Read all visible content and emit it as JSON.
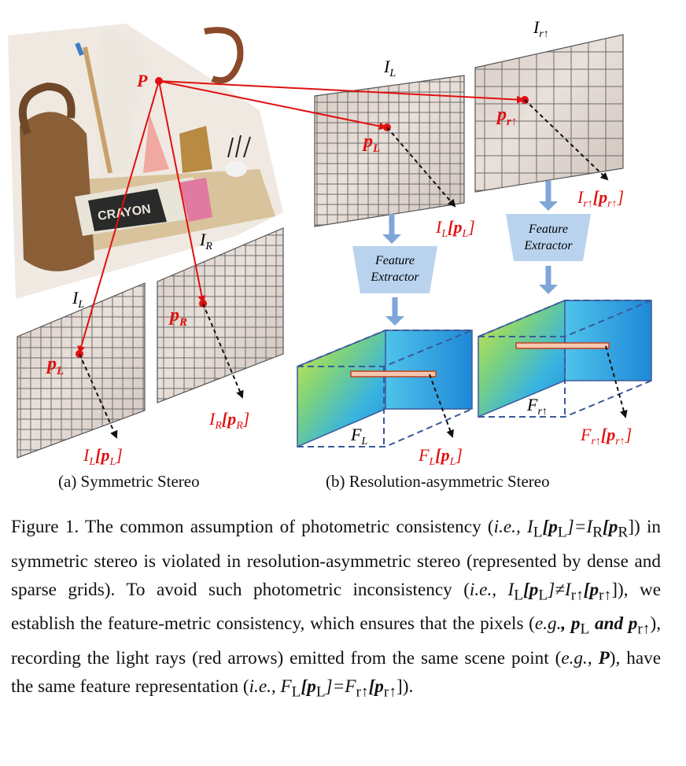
{
  "labels": {
    "P": "P",
    "IL_top": "I",
    "IL_top_sub": "L",
    "Ir_top": "I",
    "Ir_top_sub": "r↑",
    "IR": "I",
    "IR_sub": "R",
    "IL_left": "I",
    "IL_left_sub": "L",
    "pL": "p",
    "pL_sub": "L",
    "pR": "p",
    "pR_sub": "R",
    "pr": "p",
    "pr_sub": "r↑",
    "ILpL_a": "I",
    "ILpL_a_sub": "L",
    "ILpL_a_arg": "[p",
    "ILpL_a_argsub": "L",
    "IRpR": "I",
    "IRpR_sub": "R",
    "IRpR_arg": "[p",
    "IRpR_argsub": "R",
    "ILpL_b": "I",
    "ILpL_b_sub": "L",
    "Irpr": "I",
    "Irpr_sub": "r↑",
    "FL": "F",
    "FL_sub": "L",
    "Fr": "F",
    "Fr_sub": "r↑",
    "FLpL": "F",
    "FLpL_sub": "L",
    "Frpr": "F",
    "Frpr_sub": "r↑",
    "fe_line1": "Feature",
    "fe_line2": "Extractor",
    "close": "]",
    "crayon": "CRAYON"
  },
  "subcaptions": {
    "a": "(a) Symmetric Stereo",
    "b": "(b) Resolution-asymmetric Stereo"
  },
  "caption": {
    "fig": "Figure 1.",
    "p1": "  The common assumption of photometric consistency (",
    "ie1": "i.e.",
    "p2": ", I",
    "p2sub": "L",
    "p3": "[p",
    "p3sub": "L",
    "p4": "]=I",
    "p4sub": "R",
    "p5": "[p",
    "p5sub": "R",
    "p6": "]) in symmetric stereo is violated in resolution-asymmetric stereo (represented by dense and sparse grids).  To avoid such photometric inconsistency (",
    "ie2": "i.e.",
    "p7": ", I",
    "p7sub": "L",
    "p8": "[p",
    "p8sub": "L",
    "p9": "]≠I",
    "p9sub": "r↑",
    "p10": "[p",
    "p10sub": "r↑",
    "p11": "]), we establish the feature-metric consistency, which ensures that the pixels (",
    "eg1": "e.g.",
    "p12": ", p",
    "p12sub": "L",
    "p13": " and p",
    "p13sub": "r↑",
    "p14": "), recording the light rays (red arrows) emitted from the same scene point (",
    "eg2": "e.g.",
    "p15": ", ",
    "P": "P",
    "p16": "), have the same feature representation (",
    "ie3": "i.e.",
    "p17": ", F",
    "p17sub": "L",
    "p18": "[p",
    "p18sub": "L",
    "p19": "]=F",
    "p19sub": "r↑",
    "p20": "[p",
    "p20sub": "r↑",
    "p21": "])."
  },
  "colors": {
    "ray": "#e01010",
    "extractor": "#b9d3ee",
    "arrow_blue": "#7fa6d8",
    "feature_edge": "#3a5a9a"
  }
}
